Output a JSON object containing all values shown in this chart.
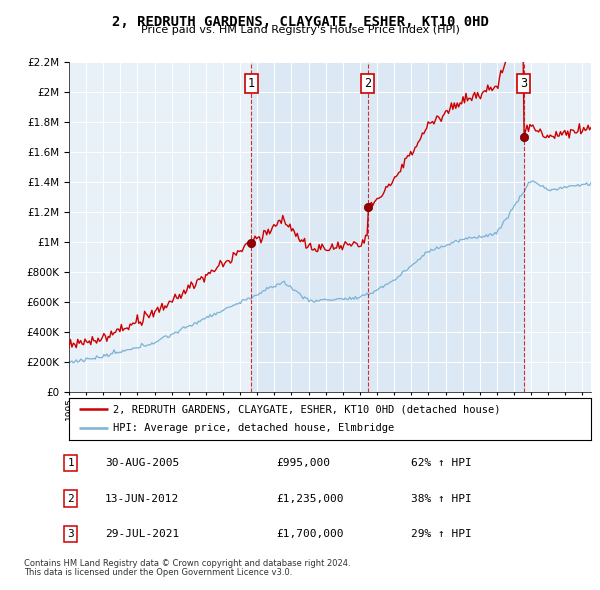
{
  "title": "2, REDRUTH GARDENS, CLAYGATE, ESHER, KT10 0HD",
  "subtitle": "Price paid vs. HM Land Registry's House Price Index (HPI)",
  "legend_line1": "2, REDRUTH GARDENS, CLAYGATE, ESHER, KT10 0HD (detached house)",
  "legend_line2": "HPI: Average price, detached house, Elmbridge",
  "footer_line1": "Contains HM Land Registry data © Crown copyright and database right 2024.",
  "footer_line2": "This data is licensed under the Open Government Licence v3.0.",
  "sale1_date": "30-AUG-2005",
  "sale1_price": "£995,000",
  "sale1_hpi": "62% ↑ HPI",
  "sale1_year": 2005.66,
  "sale1_value": 995000,
  "sale2_date": "13-JUN-2012",
  "sale2_price": "£1,235,000",
  "sale2_hpi": "38% ↑ HPI",
  "sale2_year": 2012.45,
  "sale2_value": 1235000,
  "sale3_date": "29-JUL-2021",
  "sale3_price": "£1,700,000",
  "sale3_hpi": "29% ↑ HPI",
  "sale3_year": 2021.58,
  "sale3_value": 1700000,
  "hpi_line_color": "#7ab3d4",
  "price_color": "#cc0000",
  "shade_color": "#dce9f5",
  "background_color": "#e8f0f8",
  "ylim_max": 2200000,
  "ylim_min": 0,
  "xmin": 1995,
  "xmax": 2025.5
}
